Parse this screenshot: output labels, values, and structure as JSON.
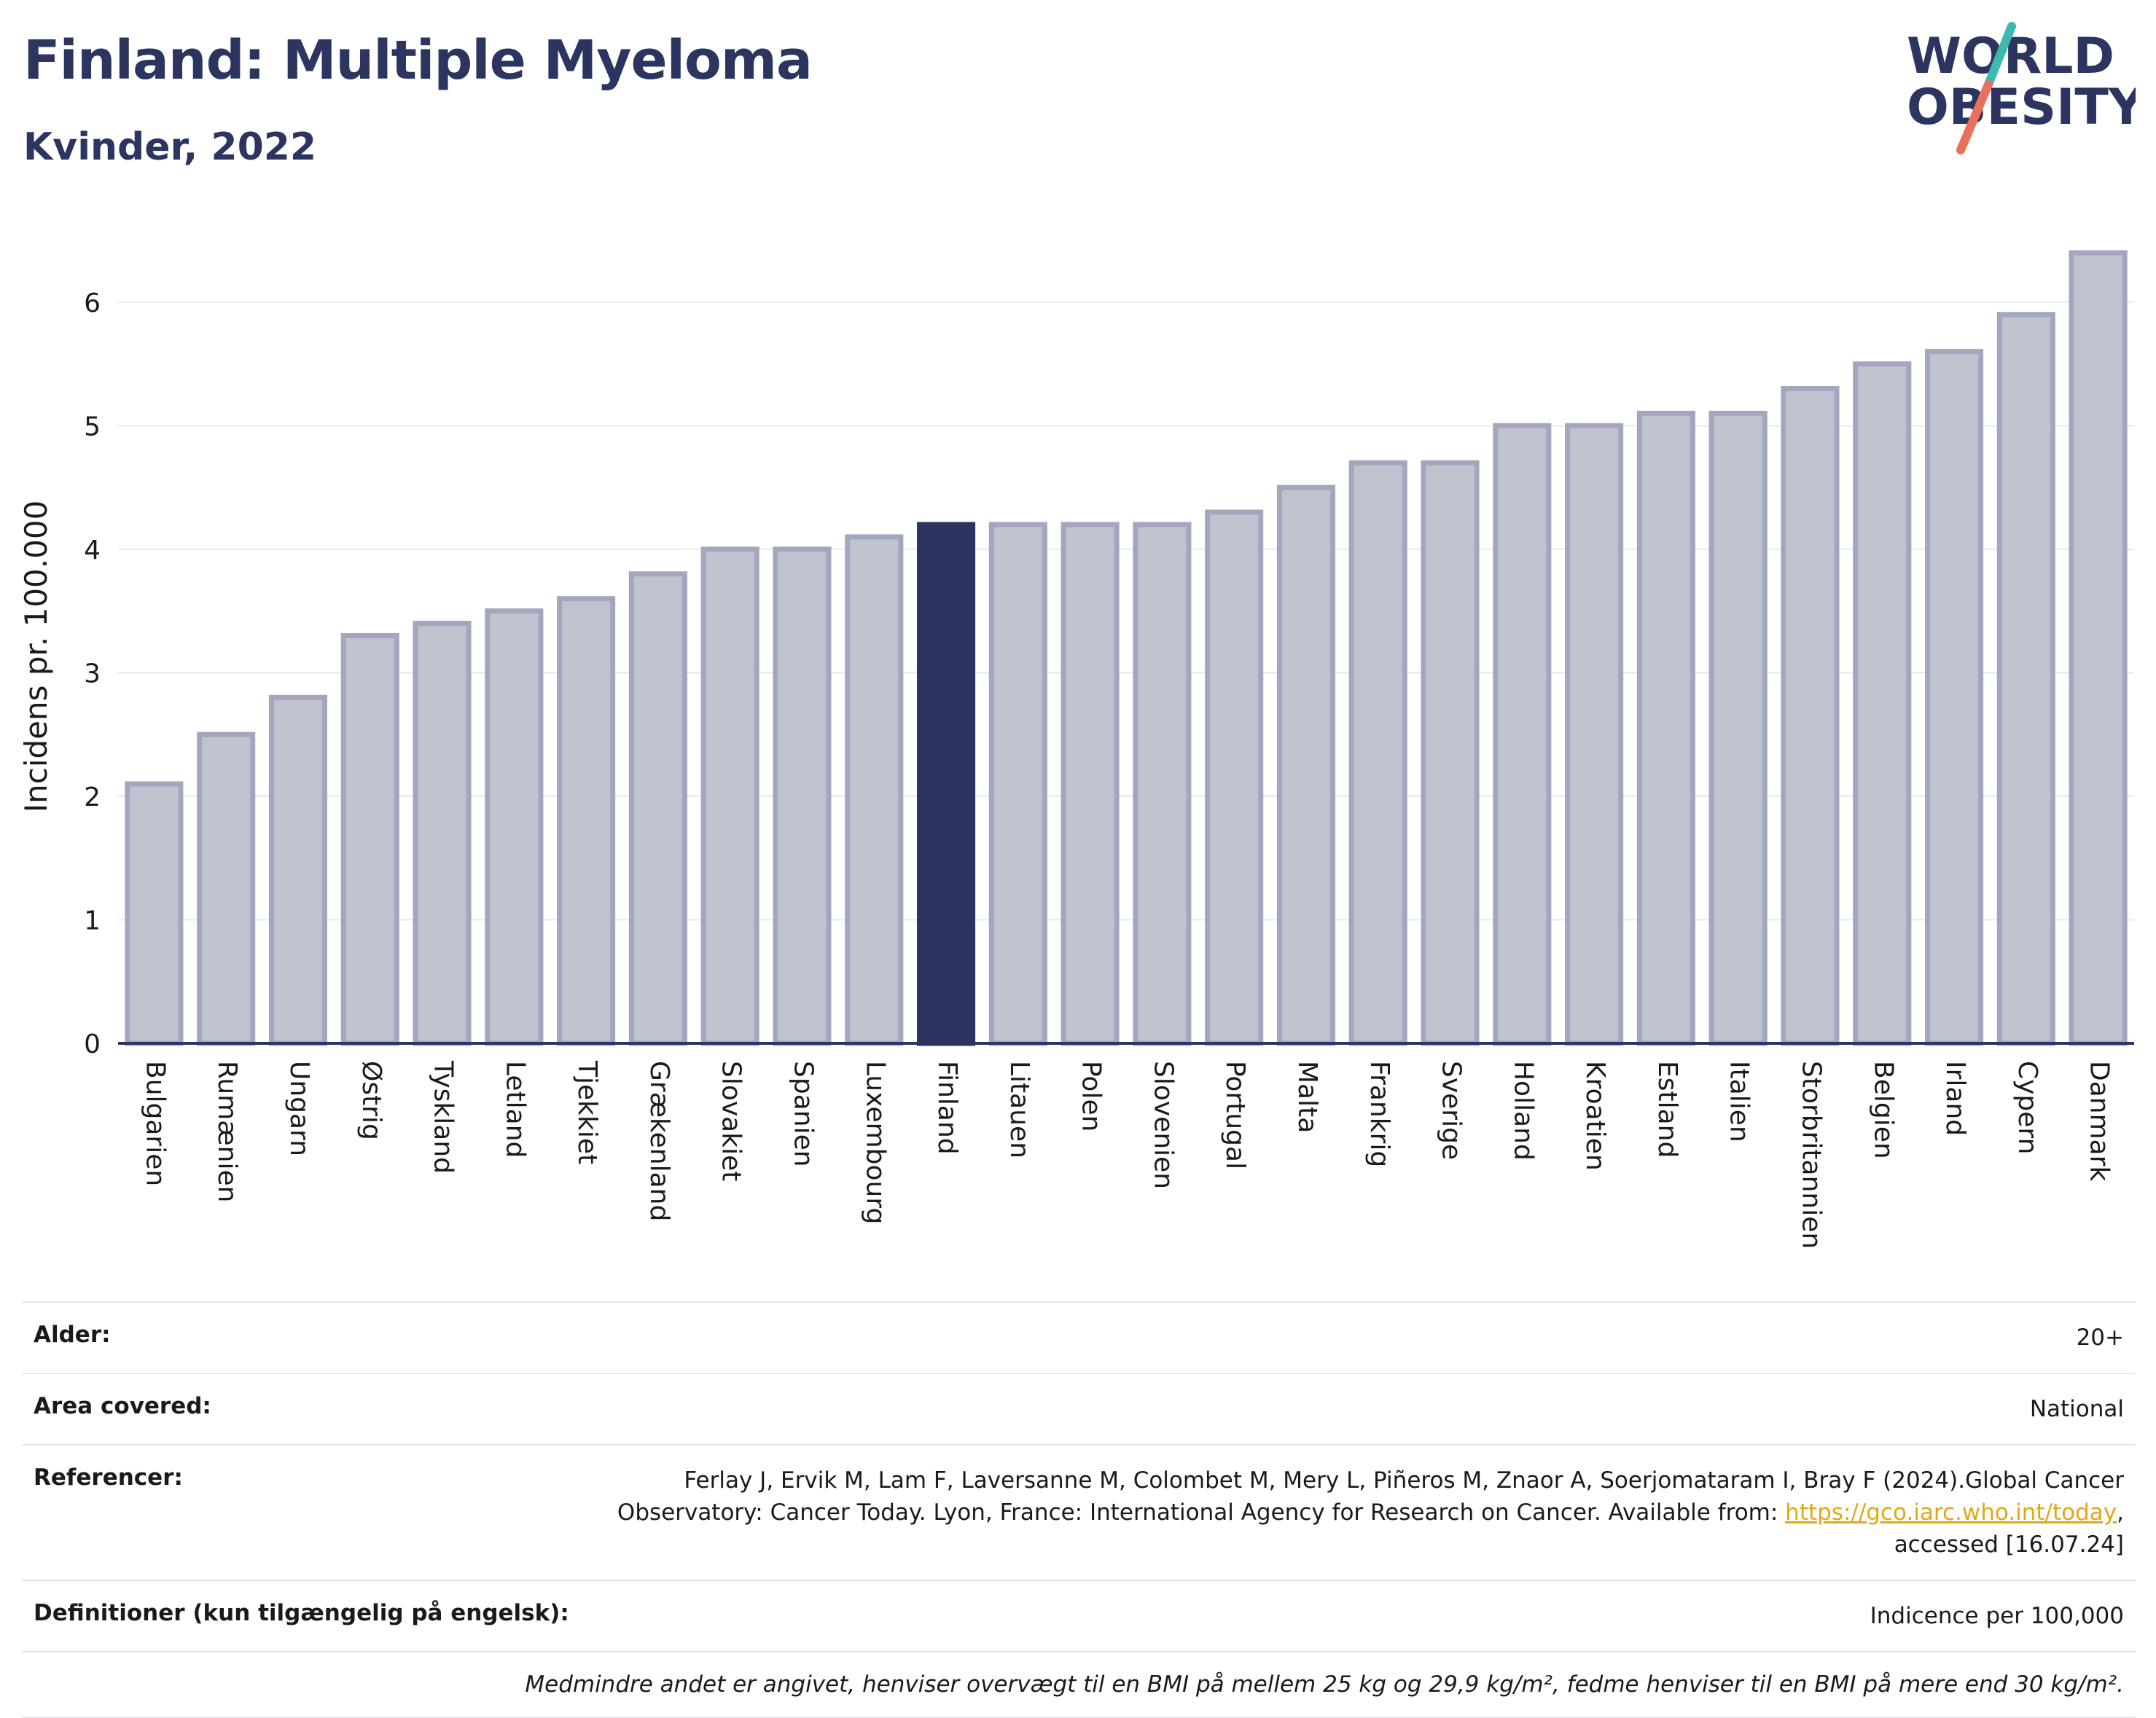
{
  "header": {
    "title": "Finland: Multiple Myeloma",
    "subtitle": "Kvinder, 2022"
  },
  "logo": {
    "line1": "WORLD",
    "line2": "OBESITY",
    "colors": {
      "text": "#2b3560",
      "slash_teal": "#3fb8b0",
      "slash_coral": "#e8705c"
    }
  },
  "chart_data": {
    "type": "bar",
    "title": "",
    "xlabel": "",
    "ylabel": "Incidens pr. 100.000",
    "ylim": [
      0,
      6.5
    ],
    "yticks": [
      0,
      1,
      2,
      3,
      4,
      5,
      6
    ],
    "grid": true,
    "highlight": "Finland",
    "colors": {
      "bar": "#c0c3cf",
      "bar_stroke": "#a2a7bd",
      "highlight": "#2b3560"
    },
    "categories": [
      "Bulgarien",
      "Rumænien",
      "Ungarn",
      "Østrig",
      "Tyskland",
      "Letland",
      "Tjekkiet",
      "Grækenland",
      "Slovakiet",
      "Spanien",
      "Luxembourg",
      "Finland",
      "Litauen",
      "Polen",
      "Slovenien",
      "Portugal",
      "Malta",
      "Frankrig",
      "Sverige",
      "Holland",
      "Kroatien",
      "Estland",
      "Italien",
      "Storbritannien",
      "Belgien",
      "Irland",
      "Cypern",
      "Danmark"
    ],
    "values": [
      2.1,
      2.5,
      2.8,
      3.3,
      3.4,
      3.5,
      3.6,
      3.8,
      4.0,
      4.0,
      4.1,
      4.2,
      4.2,
      4.2,
      4.2,
      4.3,
      4.5,
      4.7,
      4.7,
      5.0,
      5.0,
      5.1,
      5.1,
      5.3,
      5.5,
      5.6,
      5.9,
      6.4
    ]
  },
  "meta": {
    "age_label": "Alder:",
    "age_value": "20+",
    "area_label": "Area covered:",
    "area_value": "National",
    "ref_label": "Referencer:",
    "ref_text_1": "Ferlay J, Ervik M, Lam F, Laversanne M, Colombet M, Mery L, Piñeros M, Znaor A, Soerjomataram I, Bray F (2024).Global Cancer",
    "ref_text_2": "Observatory: Cancer Today. Lyon, France: International Agency for Research on Cancer. Available from: ",
    "ref_link": "https://gco.iarc.who.int/today",
    "ref_text_3": ",",
    "ref_text_4": "accessed [16.07.24]",
    "def_label": "Definitioner (kun tilgængelig på engelsk):",
    "def_value": "Indicence per 100,000",
    "note": "Medmindre andet er angivet, henviser overvægt til en BMI på mellem 25 kg og 29,9 kg/m², fedme henviser til en BMI på mere end 30 kg/m²."
  }
}
